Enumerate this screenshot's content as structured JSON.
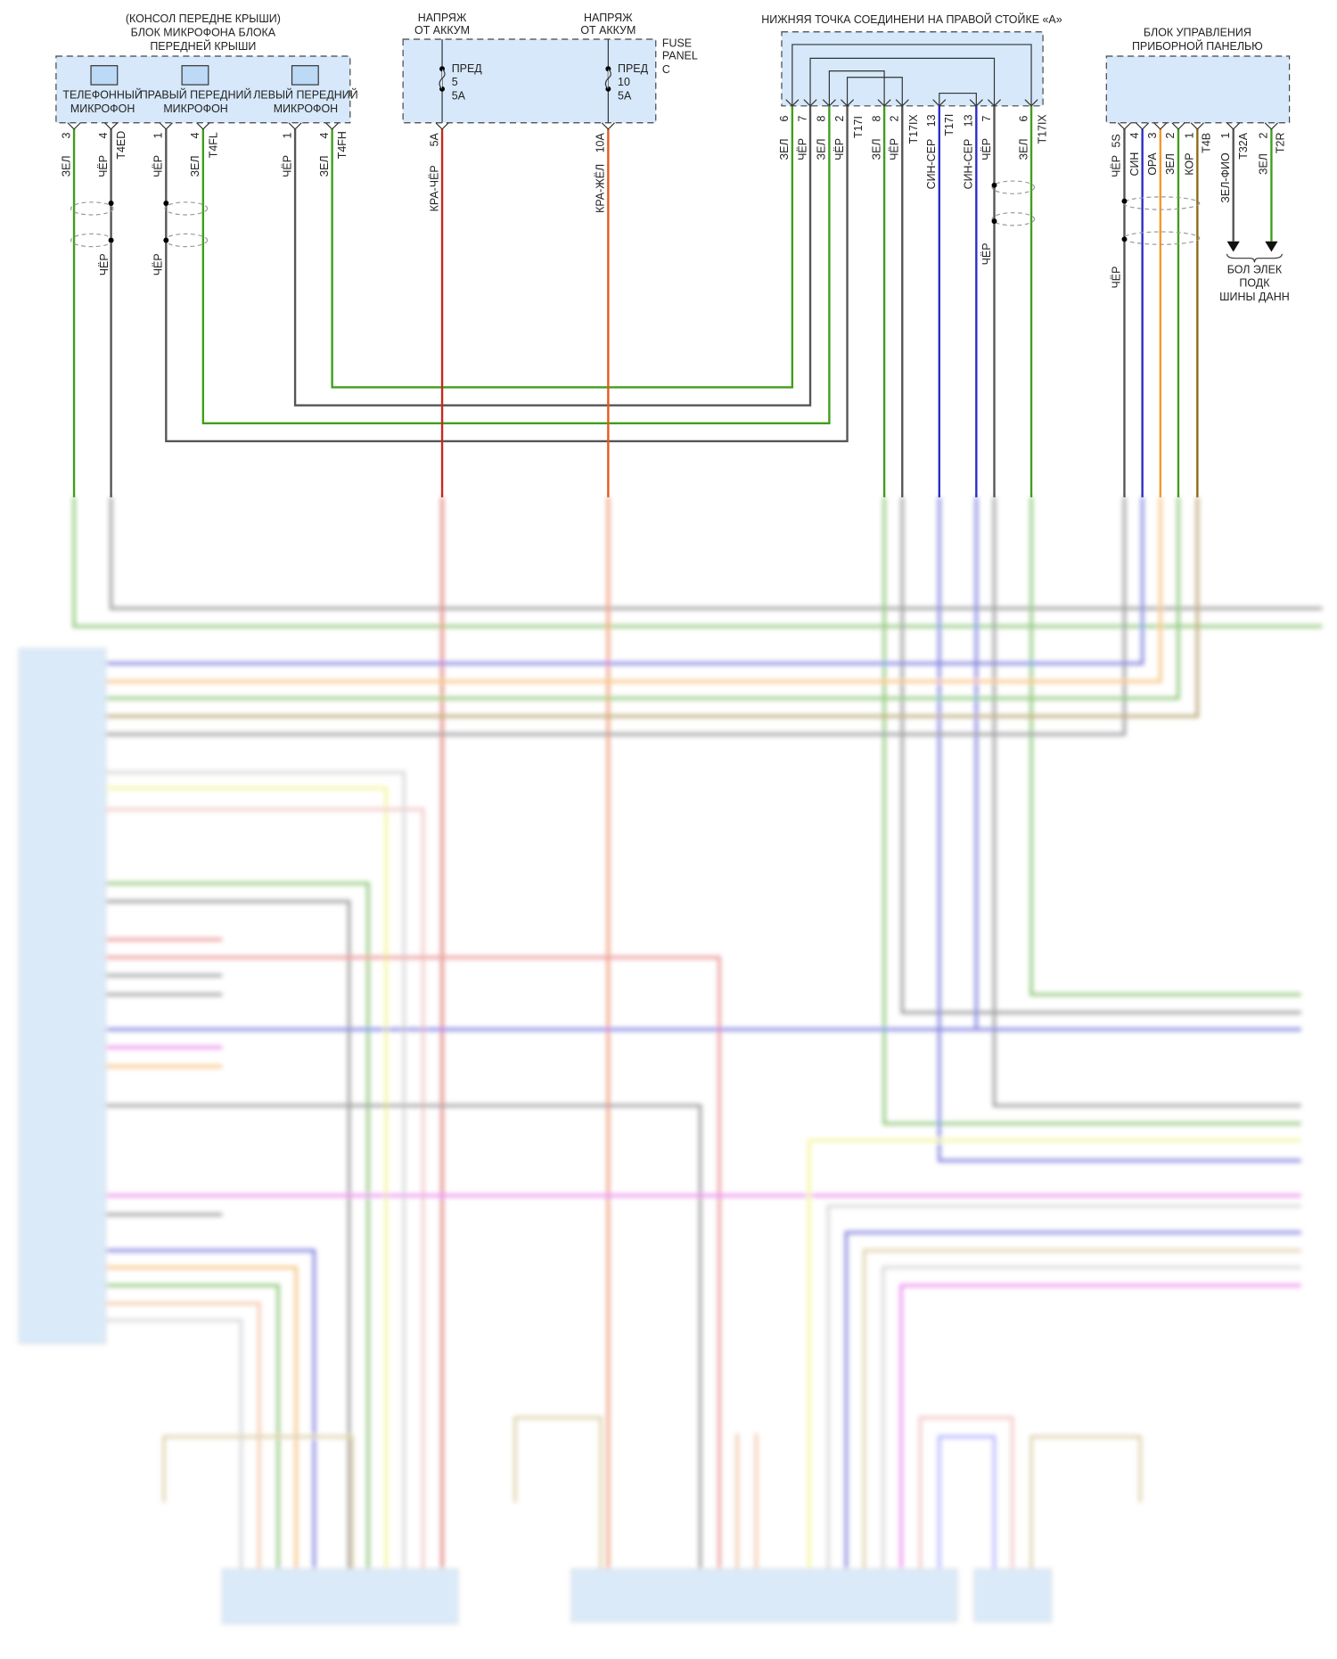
{
  "mic_block": {
    "title": [
      "(КОНСОЛ ПЕРЕДНЕ КРЫШИ)",
      "БЛОК МИКРОФОНА БЛОКА",
      "ПЕРЕДНЕЙ КРЫШИ"
    ],
    "mics": [
      {
        "line1": "ТЕЛЕФОННЫЙ",
        "line2": "МИКРОФОН"
      },
      {
        "line1": "ПРАВЫЙ ПЕРЕДНИЙ",
        "line2": "МИКРОФОН"
      },
      {
        "line1": "ЛЕВЫЙ ПЕРЕДНИЙ",
        "line2": "МИКРОФОН"
      }
    ],
    "pins": [
      {
        "num": "3",
        "wire": "ЗЕЛ"
      },
      {
        "num": "4",
        "wire": "ЧЁР",
        "connector": "T4ED"
      },
      {
        "num": "1",
        "wire": "ЧЁР"
      },
      {
        "num": "4",
        "wire": "ЗЕЛ",
        "connector": "T4FL"
      },
      {
        "num": "1",
        "wire": "ЧЁР"
      },
      {
        "num": "4",
        "wire": "ЗЕЛ",
        "connector": "T4FH"
      }
    ],
    "shield_labels": [
      "ЧЁР",
      "ЧЁР"
    ]
  },
  "fuse_panel": {
    "label": [
      "FUSE",
      "PANEL",
      "C"
    ],
    "feeds": [
      {
        "title": [
          "НАПРЯЖ",
          "ОТ АККУМ"
        ],
        "fuse": [
          "ПРЕД",
          "5",
          "5A"
        ],
        "pin": "5A",
        "wire": "КРА-ЧЁР"
      },
      {
        "title": [
          "НАПРЯЖ",
          "ОТ АККУМ"
        ],
        "fuse": [
          "ПРЕД",
          "10",
          "5A"
        ],
        "pin": "10A",
        "wire": "КРА-ЖЁЛ"
      }
    ]
  },
  "junction": {
    "title": "НИЖНЯЯ ТОЧКА СОЕДИНЕНИ НА ПРАВОЙ СТОЙКЕ «A»",
    "pins": [
      {
        "num": "6",
        "wire": "ЗЕЛ"
      },
      {
        "num": "7",
        "wire": "ЧЁР"
      },
      {
        "num": "8",
        "wire": "ЗЕЛ"
      },
      {
        "num": "2",
        "wire": "ЧЁР",
        "connector": "T17I"
      },
      {
        "num": "8",
        "wire": "ЗЕЛ"
      },
      {
        "num": "2",
        "wire": "ЧЁР",
        "connector": "T17IX"
      },
      {
        "num": "13",
        "wire": "СИН-СЕР",
        "connector": "T17I"
      },
      {
        "num": "13",
        "wire": "СИН-СЕР"
      },
      {
        "num": "7",
        "wire": "ЧЁР"
      },
      {
        "num": "6",
        "wire": "ЗЕЛ",
        "connector": "T17IX"
      }
    ],
    "shield_label": "ЧЁР"
  },
  "instrument": {
    "title": [
      "БЛОК УПРАВЛЕНИЯ",
      "ПРИБОРНОЙ ПАНЕЛЬЮ"
    ],
    "pins": [
      {
        "num": "5S",
        "wire": "ЧЁР"
      },
      {
        "num": "4",
        "wire": "СИН"
      },
      {
        "num": "3",
        "wire": "ОРА"
      },
      {
        "num": "2",
        "wire": "ЗЕЛ"
      },
      {
        "num": "1",
        "wire": "КОР",
        "connector": "T4B"
      },
      {
        "num": "1",
        "wire": "ЗЕЛ-ФИО",
        "connector": "T32A"
      },
      {
        "num": "2",
        "wire": "ЗЕЛ",
        "connector": "T2R"
      }
    ],
    "shield_label": "ЧЁР",
    "bus_label": [
      "БОЛ ЭЛЕК",
      "ПОДК",
      "ШИНЫ ДАНН"
    ]
  },
  "colors": {
    "green": "#3f9e1c",
    "black": "#555555",
    "red": "#c8281e",
    "red_yellow": "#e5571c",
    "blue_gray": "#2b2bc8",
    "orange": "#f29a2a",
    "brown": "#8b6914",
    "box": "#d6e8fa"
  }
}
